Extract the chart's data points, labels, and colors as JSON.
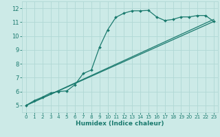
{
  "xlabel": "Humidex (Indice chaleur)",
  "bg_color": "#cceae7",
  "grid_color": "#b0d8d4",
  "line_color": "#1a7a6e",
  "xlim": [
    -0.5,
    23.5
  ],
  "ylim": [
    4.5,
    12.5
  ],
  "xticks": [
    0,
    1,
    2,
    3,
    4,
    5,
    6,
    7,
    8,
    9,
    10,
    11,
    12,
    13,
    14,
    15,
    16,
    17,
    18,
    19,
    20,
    21,
    22,
    23
  ],
  "yticks": [
    5,
    6,
    7,
    8,
    9,
    10,
    11,
    12
  ],
  "curve1_x": [
    0,
    1,
    2,
    3,
    4,
    5,
    6,
    7,
    8,
    9,
    10,
    11,
    12,
    13,
    14,
    15,
    16,
    17,
    18,
    19,
    20,
    21,
    22,
    23
  ],
  "curve1_y": [
    5.0,
    5.35,
    5.6,
    5.9,
    6.0,
    6.05,
    6.5,
    7.3,
    7.55,
    9.2,
    10.45,
    11.35,
    11.65,
    11.82,
    11.82,
    11.85,
    11.38,
    11.12,
    11.2,
    11.38,
    11.38,
    11.48,
    11.48,
    11.05
  ],
  "line1_x": [
    0,
    23
  ],
  "line1_y": [
    5.0,
    11.05
  ],
  "line2_x": [
    0,
    23
  ],
  "line2_y": [
    5.0,
    11.2
  ]
}
